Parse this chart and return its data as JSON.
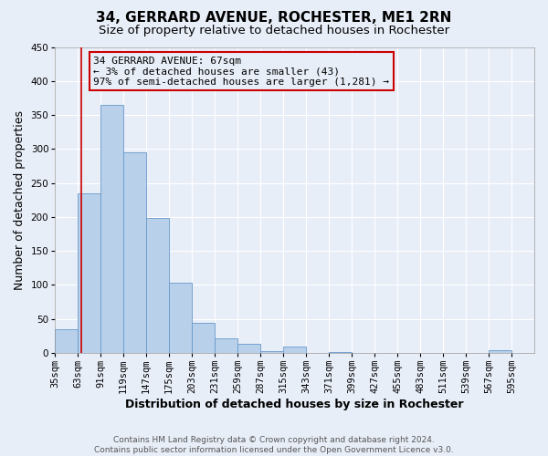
{
  "title": "34, GERRARD AVENUE, ROCHESTER, ME1 2RN",
  "subtitle": "Size of property relative to detached houses in Rochester",
  "xlabel": "Distribution of detached houses by size in Rochester",
  "ylabel": "Number of detached properties",
  "bin_labels": [
    "35sqm",
    "63sqm",
    "91sqm",
    "119sqm",
    "147sqm",
    "175sqm",
    "203sqm",
    "231sqm",
    "259sqm",
    "287sqm",
    "315sqm",
    "343sqm",
    "371sqm",
    "399sqm",
    "427sqm",
    "455sqm",
    "483sqm",
    "511sqm",
    "539sqm",
    "567sqm",
    "595sqm"
  ],
  "bin_edges": [
    35,
    63,
    91,
    119,
    147,
    175,
    203,
    231,
    259,
    287,
    315,
    343,
    371,
    399,
    427,
    455,
    483,
    511,
    539,
    567,
    595
  ],
  "bar_heights": [
    35,
    235,
    365,
    295,
    198,
    103,
    44,
    22,
    14,
    3,
    9,
    0,
    1,
    0,
    0,
    0,
    0,
    0,
    0,
    4
  ],
  "bar_color": "#b8d0ea",
  "bar_edgecolor": "#6699cc",
  "vline_x": 67,
  "vline_color": "#cc0000",
  "ylim": [
    0,
    450
  ],
  "yticks": [
    0,
    50,
    100,
    150,
    200,
    250,
    300,
    350,
    400,
    450
  ],
  "annotation_title": "34 GERRARD AVENUE: 67sqm",
  "annotation_line1": "← 3% of detached houses are smaller (43)",
  "annotation_line2": "97% of semi-detached houses are larger (1,281) →",
  "annotation_box_edgecolor": "#cc0000",
  "footer_line1": "Contains HM Land Registry data © Crown copyright and database right 2024.",
  "footer_line2": "Contains public sector information licensed under the Open Government Licence v3.0.",
  "background_color": "#e8eef8",
  "plot_bg_color": "#e8eef8",
  "grid_color": "#ffffff",
  "title_fontsize": 11,
  "subtitle_fontsize": 9.5,
  "axis_label_fontsize": 9,
  "tick_fontsize": 7.5,
  "annotation_fontsize": 8,
  "footer_fontsize": 6.5
}
